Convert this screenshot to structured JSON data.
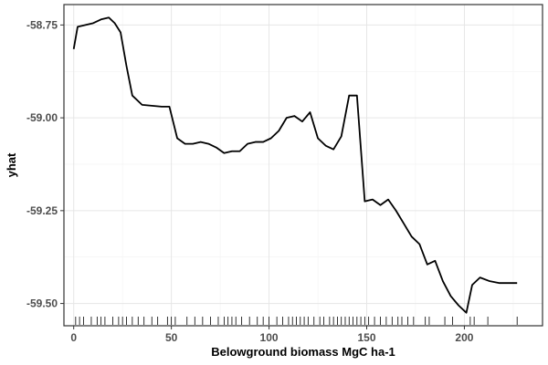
{
  "chart_data": {
    "type": "line",
    "title": "",
    "xlabel": "Belowground biomass MgC ha-1",
    "ylabel": "yhat",
    "xlim": [
      -5,
      240
    ],
    "ylim": [
      -59.56,
      -58.695
    ],
    "x_ticks": [
      0,
      50,
      100,
      150,
      200
    ],
    "y_ticks": [
      -59.5,
      -59.25,
      -59.0,
      -58.75
    ],
    "x_tick_labels": [
      "0",
      "50",
      "100",
      "150",
      "200"
    ],
    "y_tick_labels": [
      "-59.50",
      "-59.25",
      "-59.00",
      "-58.75"
    ],
    "grid": true,
    "series": [
      {
        "color": "#000000",
        "x": [
          0,
          2,
          6,
          10,
          14,
          18,
          21,
          24,
          27,
          30,
          35,
          45,
          49,
          53,
          57,
          61,
          65,
          69,
          73,
          77,
          81,
          85,
          89,
          93,
          97,
          101,
          105,
          109,
          113,
          117,
          121,
          125,
          129,
          133,
          137,
          141,
          145,
          149,
          153,
          157,
          161,
          165,
          169,
          173,
          177,
          181,
          185,
          189,
          193,
          197,
          201,
          204,
          208,
          213,
          218,
          223,
          227
        ],
        "y": [
          -58.815,
          -58.755,
          -58.75,
          -58.745,
          -58.735,
          -58.73,
          -58.745,
          -58.77,
          -58.86,
          -58.94,
          -58.965,
          -58.97,
          -58.97,
          -59.055,
          -59.07,
          -59.07,
          -59.065,
          -59.07,
          -59.08,
          -59.095,
          -59.09,
          -59.09,
          -59.07,
          -59.065,
          -59.065,
          -59.055,
          -59.035,
          -59.0,
          -58.995,
          -59.01,
          -58.985,
          -59.055,
          -59.075,
          -59.085,
          -59.05,
          -58.94,
          -58.94,
          -59.225,
          -59.22,
          -59.235,
          -59.22,
          -59.25,
          -59.285,
          -59.32,
          -59.34,
          -59.395,
          -59.385,
          -59.44,
          -59.48,
          -59.505,
          -59.525,
          -59.45,
          -59.43,
          -59.44,
          -59.445,
          -59.445,
          -59.445
        ]
      }
    ],
    "rug_x": [
      1,
      3,
      5,
      9,
      12,
      14,
      16,
      20,
      23,
      25,
      27,
      30,
      33,
      36,
      40,
      43,
      48,
      50,
      52,
      58,
      62,
      66,
      70,
      74,
      77,
      79,
      81,
      83,
      86,
      90,
      94,
      97,
      100,
      104,
      107,
      110,
      112,
      114,
      116,
      118,
      120,
      123,
      126,
      128,
      131,
      133,
      135,
      137,
      139,
      141,
      143,
      145,
      147,
      149,
      151,
      154,
      157,
      160,
      163,
      166,
      168,
      171,
      174,
      180,
      182,
      190,
      194,
      203,
      205,
      212,
      227
    ]
  }
}
